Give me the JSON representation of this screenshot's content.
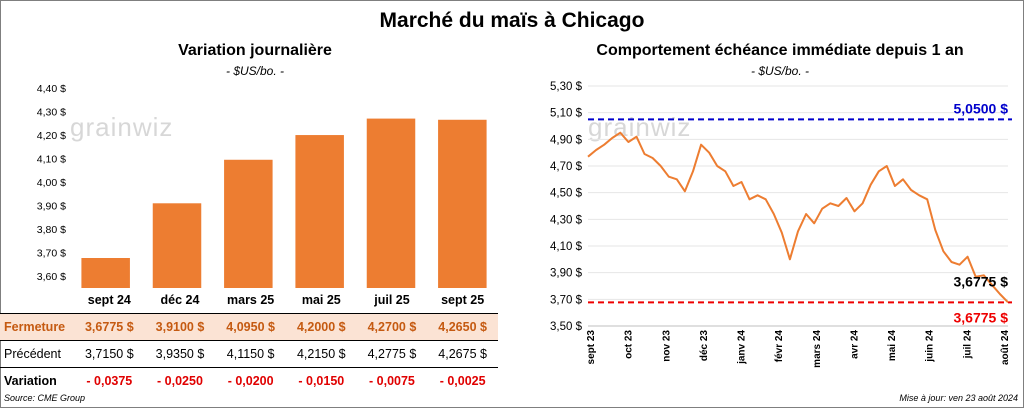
{
  "main_title": "Marché du maïs à Chicago",
  "left": {
    "title": "Variation journalière",
    "unit": "- $US/bo. -",
    "watermark": "grainwiz"
  },
  "right": {
    "title": "Comportement  échéance immédiate depuis 1 an",
    "unit": "- $US/bo. -",
    "watermark": "grainwiz"
  },
  "table": {
    "headers": [
      "sept 24",
      "déc 24",
      "mars 25",
      "mai 25",
      "juil 25",
      "sept 25"
    ],
    "rows": [
      {
        "label": "Fermeture",
        "values": [
          "3,6775  $",
          "3,9100  $",
          "4,0950  $",
          "4,2000  $",
          "4,2700  $",
          "4,2650  $"
        ]
      },
      {
        "label": "Précédent",
        "values": [
          "3,7150  $",
          "3,9350  $",
          "4,1150  $",
          "4,2150  $",
          "4,2775  $",
          "4,2675  $"
        ]
      },
      {
        "label": "Variation",
        "values": [
          "- 0,0375",
          "- 0,0250",
          "- 0,0200",
          "- 0,0150",
          "- 0,0075",
          "- 0,0025"
        ]
      }
    ]
  },
  "footer": {
    "source": "Source: CME Group",
    "updated": "Mise à jour: ven 23 août 2024"
  },
  "colors": {
    "bar": "#ed7d31",
    "line": "#ed7d31",
    "high": "#0000cc",
    "low": "#ee0000"
  },
  "chart_data": [
    {
      "type": "bar",
      "categories": [
        "sept 24",
        "déc 24",
        "mars 25",
        "mai 25",
        "juil 25",
        "sept 25"
      ],
      "values": [
        3.6775,
        3.91,
        4.095,
        4.2,
        4.27,
        4.265
      ],
      "ylim": [
        3.55,
        4.4
      ],
      "yticks": [
        "3,60 $",
        "3,70 $",
        "3,80 $",
        "3,90 $",
        "4,00 $",
        "4,10 $",
        "4,20 $",
        "4,30 $",
        "4,40 $"
      ],
      "ytick_values": [
        3.6,
        3.7,
        3.8,
        3.9,
        4.0,
        4.1,
        4.2,
        4.3,
        4.4
      ]
    },
    {
      "type": "line",
      "ylim": [
        3.5,
        5.3
      ],
      "yticks": [
        "3,50 $",
        "3,70 $",
        "3,90 $",
        "4,10 $",
        "4,30 $",
        "4,50 $",
        "4,70 $",
        "4,90 $",
        "5,10 $",
        "5,30 $"
      ],
      "ytick_values": [
        3.5,
        3.7,
        3.9,
        4.1,
        4.3,
        4.5,
        4.7,
        4.9,
        5.1,
        5.3
      ],
      "xticks": [
        "sept 23",
        "oct 23",
        "nov 23",
        "déc 23",
        "janv 24",
        "févr 24",
        "mars 24",
        "avr 24",
        "mai 24",
        "juin 24",
        "juil 24",
        "août 24"
      ],
      "x": [
        "2023-08-25",
        "2023-09-01",
        "2023-09-08",
        "2023-09-15",
        "2023-09-22",
        "2023-09-29",
        "2023-10-06",
        "2023-10-13",
        "2023-10-20",
        "2023-10-27",
        "2023-11-03",
        "2023-11-10",
        "2023-11-17",
        "2023-11-24",
        "2023-12-01",
        "2023-12-08",
        "2023-12-15",
        "2023-12-22",
        "2023-12-29",
        "2024-01-05",
        "2024-01-12",
        "2024-01-19",
        "2024-01-26",
        "2024-02-02",
        "2024-02-09",
        "2024-02-16",
        "2024-02-23",
        "2024-03-01",
        "2024-03-08",
        "2024-03-15",
        "2024-03-22",
        "2024-03-29",
        "2024-04-05",
        "2024-04-12",
        "2024-04-19",
        "2024-04-26",
        "2024-05-03",
        "2024-05-10",
        "2024-05-17",
        "2024-05-24",
        "2024-05-31",
        "2024-06-07",
        "2024-06-14",
        "2024-06-21",
        "2024-06-28",
        "2024-07-05",
        "2024-07-12",
        "2024-07-19",
        "2024-07-26",
        "2024-08-02",
        "2024-08-09",
        "2024-08-16",
        "2024-08-23"
      ],
      "values": [
        4.77,
        4.82,
        4.86,
        4.91,
        4.95,
        4.88,
        4.92,
        4.79,
        4.76,
        4.7,
        4.62,
        4.6,
        4.51,
        4.66,
        4.86,
        4.8,
        4.7,
        4.66,
        4.55,
        4.58,
        4.45,
        4.48,
        4.45,
        4.34,
        4.2,
        4.0,
        4.21,
        4.34,
        4.27,
        4.38,
        4.42,
        4.4,
        4.46,
        4.36,
        4.42,
        4.56,
        4.66,
        4.7,
        4.55,
        4.6,
        4.52,
        4.48,
        4.45,
        4.22,
        4.06,
        3.98,
        3.96,
        4.02,
        3.87,
        3.88,
        3.81,
        3.74,
        3.6775
      ],
      "reference_lines": [
        {
          "label": "5,0500 $",
          "value": 5.05
        },
        {
          "label": "3,6775 $",
          "value": 3.6775
        }
      ],
      "last_label": "3,6775 $"
    }
  ]
}
